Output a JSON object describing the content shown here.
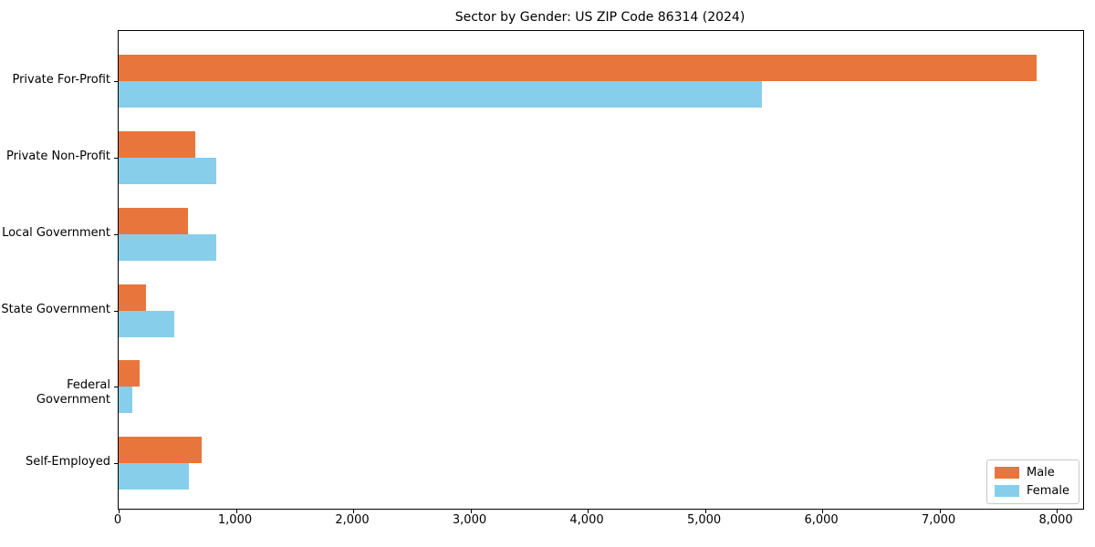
{
  "chart_data": {
    "type": "bar",
    "orientation": "horizontal",
    "title": "Sector by Gender: US ZIP Code 86314 (2024)",
    "categories": [
      "Private For-Profit",
      "Private Non-Profit",
      "Local Government",
      "State Government",
      "Federal Government",
      "Self-Employed"
    ],
    "series": [
      {
        "name": "Male",
        "color": "#E8763C",
        "values": [
          7830,
          650,
          590,
          230,
          180,
          705
        ]
      },
      {
        "name": "Female",
        "color": "#87CEEB",
        "values": [
          5485,
          835,
          835,
          475,
          120,
          600
        ]
      }
    ],
    "xlabel": "",
    "ylabel": "",
    "xlim": [
      0,
      8225
    ],
    "xticks": {
      "values": [
        0,
        1000,
        2000,
        3000,
        4000,
        5000,
        6000,
        7000,
        8000
      ],
      "labels": [
        "0",
        "1,000",
        "2,000",
        "3,000",
        "4,000",
        "5,000",
        "6,000",
        "7,000",
        "8,000"
      ]
    },
    "grid": false,
    "legend": {
      "position": "lower right"
    }
  }
}
